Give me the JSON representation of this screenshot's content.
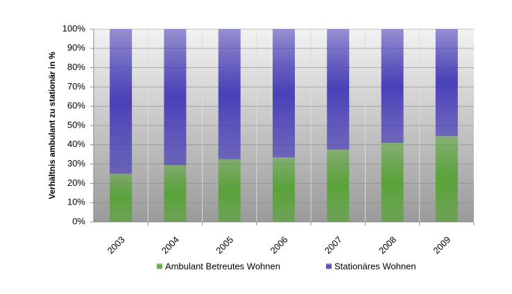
{
  "chart_data": {
    "type": "stacked_bar",
    "y_label": "Verhältnis ambulant zu stationär in %",
    "categories": [
      "2003",
      "2004",
      "2005",
      "2006",
      "2007",
      "2008",
      "2009"
    ],
    "series": [
      {
        "name": "Ambulant Betreutes Wohnen",
        "color": "#5aa33a",
        "values": [
          25,
          29.5,
          32.5,
          33.5,
          37.5,
          41,
          44.5
        ]
      },
      {
        "name": "Stationäres Wohnen",
        "color": "#4a40b8",
        "values": [
          75,
          70.5,
          67.5,
          66.5,
          62.5,
          59,
          55.5
        ]
      }
    ],
    "ylim": [
      0,
      100
    ],
    "yticks": [
      {
        "value": 0,
        "label": "0%"
      },
      {
        "value": 10,
        "label": "10%"
      },
      {
        "value": 20,
        "label": "20%"
      },
      {
        "value": 30,
        "label": "30%"
      },
      {
        "value": 40,
        "label": "40%"
      },
      {
        "value": 50,
        "label": "50%"
      },
      {
        "value": 60,
        "label": "60%"
      },
      {
        "value": 70,
        "label": "70%"
      },
      {
        "value": 80,
        "label": "80%"
      },
      {
        "value": 90,
        "label": "90%"
      },
      {
        "value": 100,
        "label": "100%"
      }
    ],
    "grid": true,
    "legend": "bottom"
  }
}
